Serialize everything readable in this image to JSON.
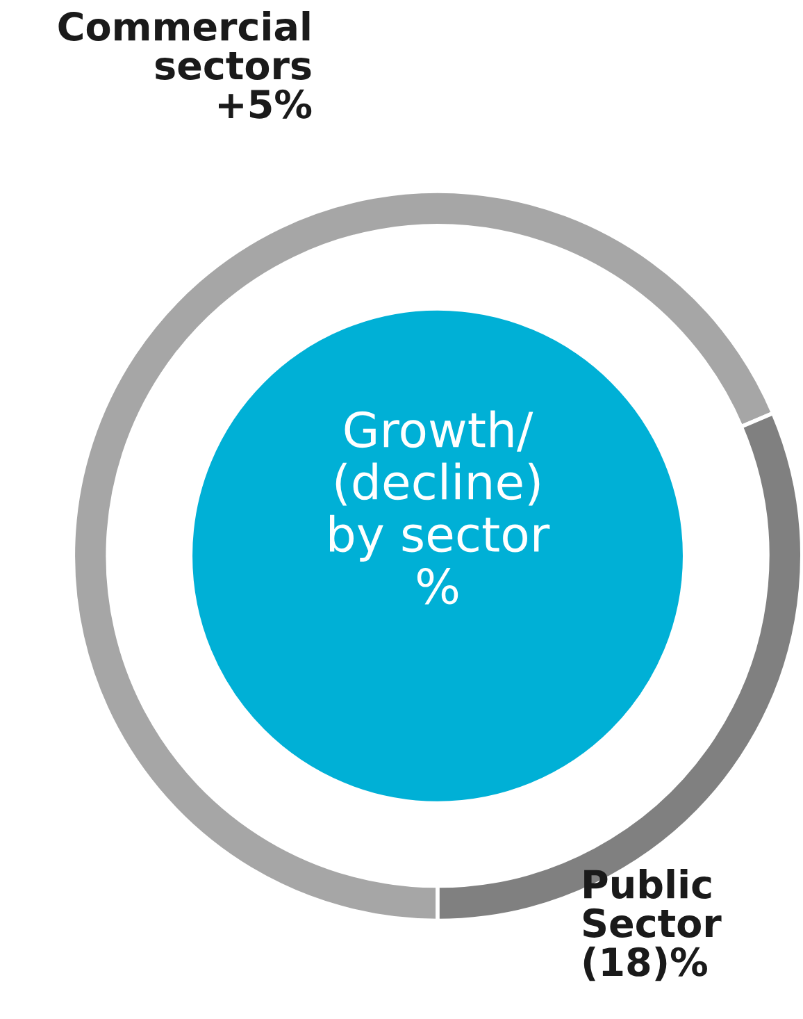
{
  "chart_data": {
    "type": "donut",
    "title": "Growth/\n(decline)\nby sector\n%",
    "categories": [
      "Commercial\nsectors\n+5%",
      "Public\nSector\n(18)%"
    ],
    "values": [
      68.6,
      31.4
    ],
    "colors": [
      "#a6a6a6",
      "#808080"
    ],
    "legend": false
  }
}
